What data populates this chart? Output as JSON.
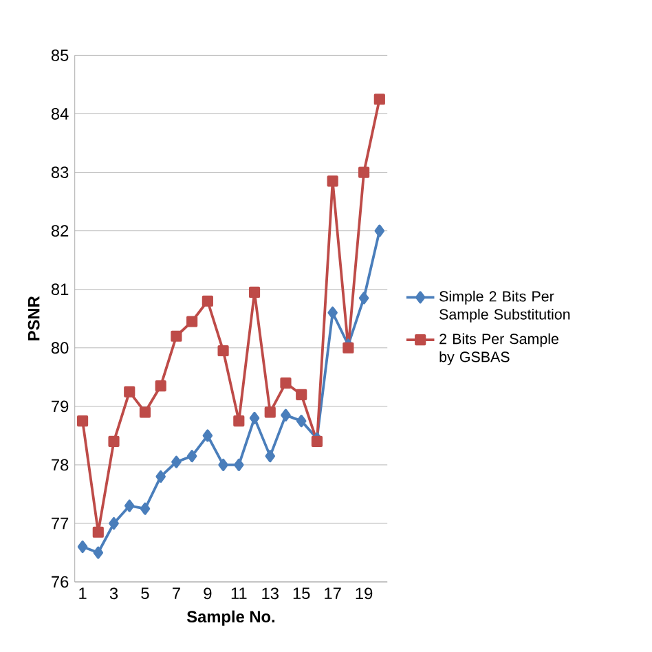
{
  "chart_data": {
    "type": "line",
    "xlabel": "Sample No.",
    "ylabel": "PSNR",
    "categories": [
      "1",
      null,
      "3",
      null,
      "5",
      null,
      "7",
      null,
      "9",
      null,
      "11",
      null,
      "13",
      null,
      "15",
      null,
      "17",
      null,
      "19",
      null
    ],
    "series": [
      {
        "name": "Simple 2 Bits Per Sample Substitution",
        "color": "#4a7ebb",
        "marker": "diamond",
        "values": [
          76.6,
          76.5,
          77.0,
          77.3,
          77.25,
          77.8,
          78.05,
          78.15,
          78.5,
          78.0,
          78.0,
          78.8,
          78.15,
          78.85,
          78.75,
          78.45,
          80.6,
          80.05,
          80.85,
          82.0
        ]
      },
      {
        "name": "2 Bits Per Sample by GSBAS",
        "color": "#be4b48",
        "marker": "square",
        "values": [
          78.75,
          76.85,
          78.4,
          79.25,
          78.9,
          79.35,
          80.2,
          80.45,
          80.8,
          79.95,
          78.75,
          80.95,
          78.9,
          79.4,
          79.2,
          78.4,
          82.85,
          80.0,
          83.0,
          84.25
        ]
      }
    ],
    "ylim": [
      76,
      85
    ],
    "yticks": [
      76,
      77,
      78,
      79,
      80,
      81,
      82,
      83,
      84,
      85
    ],
    "grid": "y",
    "legend": "right"
  }
}
